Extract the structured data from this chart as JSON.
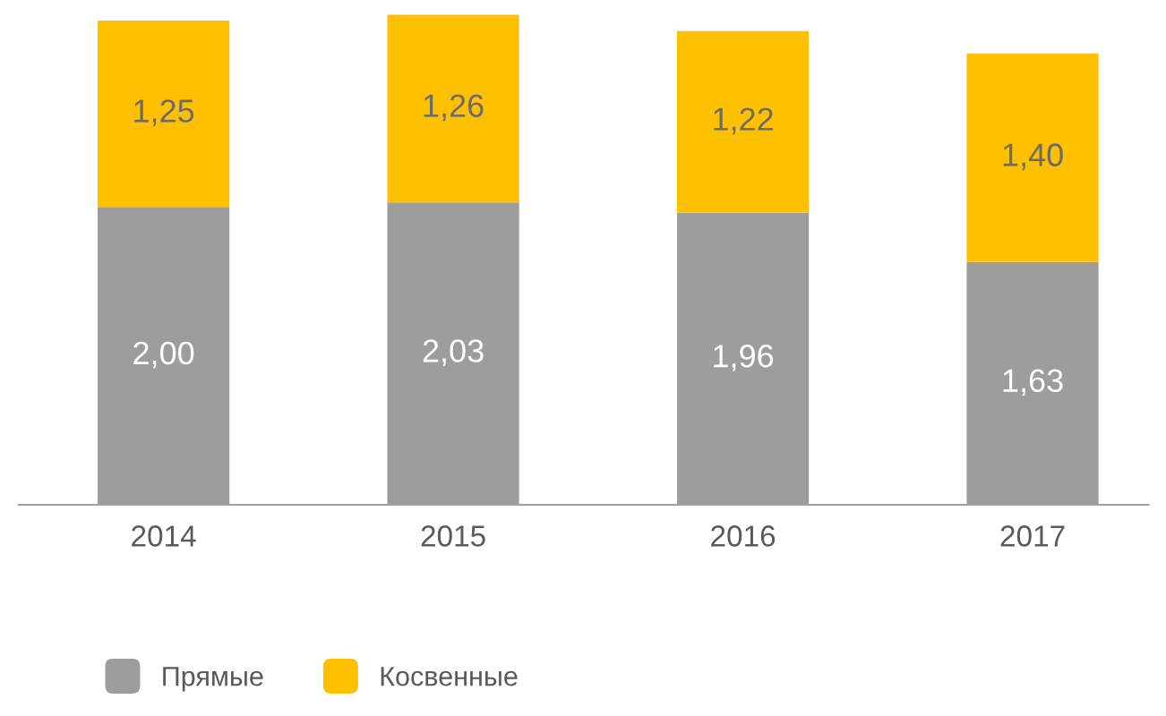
{
  "chart_data": {
    "type": "bar",
    "stacked": true,
    "relative": false,
    "categories": [
      "2014",
      "2015",
      "2016",
      "2017"
    ],
    "series": [
      {
        "name": "Прямые",
        "color": "#9d9d9c",
        "values": [
          2.0,
          2.03,
          1.96,
          1.63
        ],
        "value_labels": [
          "2,00",
          "2,03",
          "1,96",
          "1,63"
        ]
      },
      {
        "name": "Косвенные",
        "color": "#ffc000",
        "values": [
          1.25,
          1.26,
          1.22,
          1.4
        ],
        "value_labels": [
          "1,25",
          "1,26",
          "1,22",
          "1,40"
        ]
      }
    ],
    "legend": "bottom left",
    "grid": false,
    "tick_labels": "x"
  }
}
